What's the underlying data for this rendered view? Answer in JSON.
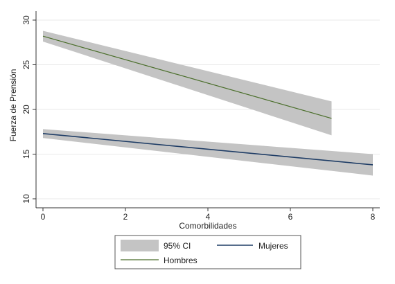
{
  "chart_data": {
    "type": "line",
    "title": "",
    "xlabel": "Comorbilidades",
    "ylabel": "Fuerza de Prensión",
    "xlim": [
      0,
      8
    ],
    "ylim": [
      10,
      30
    ],
    "x_ticks": [
      0,
      2,
      4,
      6,
      8
    ],
    "y_ticks": [
      10,
      15,
      20,
      25,
      30
    ],
    "grid": true,
    "legend_position": "bottom",
    "ci_label": "95% CI",
    "ci_color": "#c4c4c4",
    "series": [
      {
        "name": "Mujeres",
        "color": "#1f3d66",
        "x": [
          0,
          8
        ],
        "y": [
          17.3,
          13.8
        ],
        "ci_lower": [
          16.8,
          12.6
        ],
        "ci_upper": [
          17.8,
          15.0
        ]
      },
      {
        "name": "Hombres",
        "color": "#4a6e2a",
        "x": [
          0,
          7
        ],
        "y": [
          28.2,
          19.0
        ],
        "ci_lower": [
          27.6,
          17.1
        ],
        "ci_upper": [
          28.8,
          20.9
        ]
      }
    ]
  }
}
